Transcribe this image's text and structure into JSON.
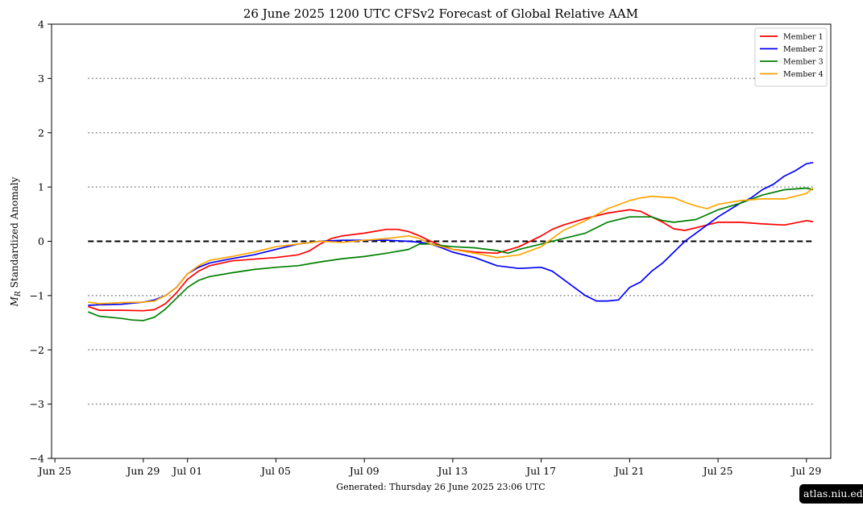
{
  "chart_data": {
    "type": "line",
    "title": "26  June  2025 1200 UTC   CFSv2 Forecast of Global Relative AAM",
    "ylabel": "Standardized Anomaly",
    "ylabel_symbol": "M",
    "ylabel_subscript": "R",
    "xlabel": "",
    "footer": "Generated: Thursday  26  June  2025  23:06 UTC",
    "ylim": [
      -4,
      4
    ],
    "y_ticks": [
      {
        "value": -4,
        "label": "−4"
      },
      {
        "value": -3,
        "label": "−3"
      },
      {
        "value": -2,
        "label": "−2"
      },
      {
        "value": -1,
        "label": "−1"
      },
      {
        "value": 0,
        "label": "0"
      },
      {
        "value": 1,
        "label": "1"
      },
      {
        "value": 2,
        "label": "2"
      },
      {
        "value": 3,
        "label": "3"
      },
      {
        "value": 4,
        "label": "4"
      }
    ],
    "x_range_days": [
      -0.15,
      35.1
    ],
    "x_ticks": [
      {
        "day": 0,
        "label": "Jun 25"
      },
      {
        "day": 4,
        "label": "Jun 29"
      },
      {
        "day": 6,
        "label": "Jul 01"
      },
      {
        "day": 10,
        "label": "Jul 05"
      },
      {
        "day": 14,
        "label": "Jul 09"
      },
      {
        "day": 18,
        "label": "Jul 13"
      },
      {
        "day": 22,
        "label": "Jul 17"
      },
      {
        "day": 26,
        "label": "Jul 21"
      },
      {
        "day": 30,
        "label": "Jul 25"
      },
      {
        "day": 34,
        "label": "Jul 29"
      }
    ],
    "reference_lines": [
      {
        "y": 0,
        "style": "dashed"
      },
      {
        "y": 1,
        "style": "dotted"
      },
      {
        "y": 2,
        "style": "dotted"
      },
      {
        "y": 3,
        "style": "dotted"
      },
      {
        "y": -1,
        "style": "dotted"
      },
      {
        "y": -2,
        "style": "dotted"
      },
      {
        "y": -3,
        "style": "dotted"
      }
    ],
    "reference_line_x_range_days": [
      1.5,
      34.3
    ],
    "legend_position": "top-right",
    "series": [
      {
        "name": "Member 1",
        "color": "#ff0000",
        "points": [
          [
            1.5,
            -1.2
          ],
          [
            2,
            -1.27
          ],
          [
            3,
            -1.27
          ],
          [
            4,
            -1.28
          ],
          [
            4.5,
            -1.26
          ],
          [
            5,
            -1.15
          ],
          [
            5.5,
            -0.95
          ],
          [
            6,
            -0.7
          ],
          [
            6.5,
            -0.55
          ],
          [
            7,
            -0.45
          ],
          [
            8,
            -0.36
          ],
          [
            9,
            -0.33
          ],
          [
            10,
            -0.3
          ],
          [
            11,
            -0.25
          ],
          [
            11.5,
            -0.18
          ],
          [
            12,
            -0.05
          ],
          [
            12.5,
            0.05
          ],
          [
            13,
            0.1
          ],
          [
            14,
            0.15
          ],
          [
            15,
            0.22
          ],
          [
            15.5,
            0.22
          ],
          [
            16,
            0.18
          ],
          [
            16.5,
            0.1
          ],
          [
            17,
            0.0
          ],
          [
            17.5,
            -0.08
          ],
          [
            18,
            -0.15
          ],
          [
            19,
            -0.2
          ],
          [
            20,
            -0.22
          ],
          [
            21,
            -0.1
          ],
          [
            21.5,
            0.0
          ],
          [
            22,
            0.1
          ],
          [
            22.5,
            0.22
          ],
          [
            23,
            0.3
          ],
          [
            24,
            0.42
          ],
          [
            25,
            0.52
          ],
          [
            25.5,
            0.55
          ],
          [
            26,
            0.58
          ],
          [
            26.5,
            0.55
          ],
          [
            27,
            0.45
          ],
          [
            27.5,
            0.35
          ],
          [
            28,
            0.23
          ],
          [
            28.5,
            0.2
          ],
          [
            29,
            0.25
          ],
          [
            30,
            0.35
          ],
          [
            31,
            0.35
          ],
          [
            32,
            0.32
          ],
          [
            33,
            0.3
          ],
          [
            34,
            0.38
          ],
          [
            34.3,
            0.36
          ]
        ]
      },
      {
        "name": "Member 2",
        "color": "#0000ff",
        "points": [
          [
            1.5,
            -1.18
          ],
          [
            2,
            -1.17
          ],
          [
            3,
            -1.16
          ],
          [
            4,
            -1.12
          ],
          [
            4.5,
            -1.08
          ],
          [
            5,
            -1.0
          ],
          [
            5.5,
            -0.85
          ],
          [
            6,
            -0.6
          ],
          [
            6.5,
            -0.48
          ],
          [
            7,
            -0.4
          ],
          [
            8,
            -0.32
          ],
          [
            9,
            -0.25
          ],
          [
            10,
            -0.15
          ],
          [
            11,
            -0.05
          ],
          [
            12,
            0.0
          ],
          [
            13,
            0.02
          ],
          [
            14,
            0.02
          ],
          [
            15,
            0.02
          ],
          [
            16,
            0.0
          ],
          [
            16.5,
            -0.02
          ],
          [
            17,
            -0.05
          ],
          [
            17.5,
            -0.12
          ],
          [
            18,
            -0.2
          ],
          [
            19,
            -0.3
          ],
          [
            20,
            -0.45
          ],
          [
            21,
            -0.5
          ],
          [
            22,
            -0.48
          ],
          [
            22.5,
            -0.55
          ],
          [
            23,
            -0.7
          ],
          [
            23.5,
            -0.85
          ],
          [
            24,
            -1.0
          ],
          [
            24.5,
            -1.1
          ],
          [
            25,
            -1.1
          ],
          [
            25.5,
            -1.08
          ],
          [
            26,
            -0.85
          ],
          [
            26.5,
            -0.75
          ],
          [
            27,
            -0.55
          ],
          [
            27.5,
            -0.4
          ],
          [
            28,
            -0.2
          ],
          [
            28.5,
            0.0
          ],
          [
            29,
            0.15
          ],
          [
            29.5,
            0.3
          ],
          [
            30,
            0.45
          ],
          [
            31,
            0.7
          ],
          [
            31.5,
            0.8
          ],
          [
            32,
            0.95
          ],
          [
            32.5,
            1.05
          ],
          [
            33,
            1.2
          ],
          [
            33.5,
            1.3
          ],
          [
            34,
            1.43
          ],
          [
            34.3,
            1.45
          ]
        ]
      },
      {
        "name": "Member 3",
        "color": "#008000",
        "points": [
          [
            1.5,
            -1.3
          ],
          [
            2,
            -1.38
          ],
          [
            3,
            -1.42
          ],
          [
            3.5,
            -1.45
          ],
          [
            4,
            -1.46
          ],
          [
            4.5,
            -1.4
          ],
          [
            5,
            -1.25
          ],
          [
            5.5,
            -1.05
          ],
          [
            6,
            -0.85
          ],
          [
            6.5,
            -0.72
          ],
          [
            7,
            -0.65
          ],
          [
            8,
            -0.58
          ],
          [
            9,
            -0.52
          ],
          [
            10,
            -0.48
          ],
          [
            11,
            -0.45
          ],
          [
            12,
            -0.38
          ],
          [
            13,
            -0.32
          ],
          [
            14,
            -0.28
          ],
          [
            15,
            -0.22
          ],
          [
            16,
            -0.15
          ],
          [
            16.5,
            -0.05
          ],
          [
            17,
            -0.05
          ],
          [
            17.5,
            -0.08
          ],
          [
            18,
            -0.1
          ],
          [
            19,
            -0.12
          ],
          [
            20,
            -0.17
          ],
          [
            20.5,
            -0.22
          ],
          [
            21,
            -0.15
          ],
          [
            22,
            -0.05
          ],
          [
            23,
            0.05
          ],
          [
            24,
            0.15
          ],
          [
            25,
            0.35
          ],
          [
            26,
            0.45
          ],
          [
            27,
            0.45
          ],
          [
            27.5,
            0.38
          ],
          [
            28,
            0.35
          ],
          [
            29,
            0.4
          ],
          [
            30,
            0.58
          ],
          [
            31,
            0.7
          ],
          [
            32,
            0.85
          ],
          [
            33,
            0.95
          ],
          [
            34,
            0.98
          ],
          [
            34.3,
            0.95
          ]
        ]
      },
      {
        "name": "Member 4",
        "color": "#ffa500",
        "points": [
          [
            1.5,
            -1.12
          ],
          [
            2,
            -1.15
          ],
          [
            3,
            -1.13
          ],
          [
            4,
            -1.12
          ],
          [
            4.5,
            -1.1
          ],
          [
            5,
            -1.0
          ],
          [
            5.5,
            -0.85
          ],
          [
            6,
            -0.6
          ],
          [
            6.5,
            -0.45
          ],
          [
            7,
            -0.35
          ],
          [
            8,
            -0.28
          ],
          [
            9,
            -0.2
          ],
          [
            10,
            -0.1
          ],
          [
            11,
            -0.05
          ],
          [
            12,
            0.0
          ],
          [
            13,
            -0.02
          ],
          [
            14,
            0.02
          ],
          [
            15,
            0.05
          ],
          [
            16,
            0.1
          ],
          [
            16.5,
            0.05
          ],
          [
            17,
            -0.05
          ],
          [
            18,
            -0.15
          ],
          [
            19,
            -0.22
          ],
          [
            20,
            -0.3
          ],
          [
            21,
            -0.25
          ],
          [
            22,
            -0.1
          ],
          [
            22.5,
            0.05
          ],
          [
            23,
            0.2
          ],
          [
            24,
            0.38
          ],
          [
            25,
            0.6
          ],
          [
            26,
            0.75
          ],
          [
            26.5,
            0.8
          ],
          [
            27,
            0.83
          ],
          [
            28,
            0.8
          ],
          [
            28.5,
            0.72
          ],
          [
            29,
            0.65
          ],
          [
            29.5,
            0.6
          ],
          [
            30,
            0.68
          ],
          [
            31,
            0.75
          ],
          [
            32,
            0.78
          ],
          [
            33,
            0.78
          ],
          [
            34,
            0.88
          ],
          [
            34.3,
            0.98
          ]
        ]
      }
    ]
  },
  "watermark": "atlas.niu.edu"
}
